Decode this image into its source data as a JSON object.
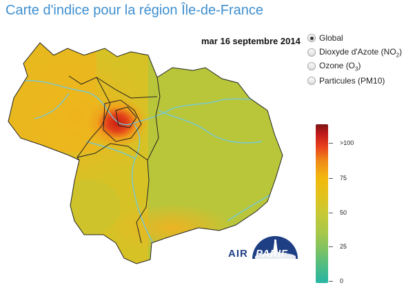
{
  "title": "Carte d'indice pour la région Île-de-France",
  "date": "mar 16 septembre 2014",
  "options": [
    {
      "label": "Global",
      "sub": "",
      "suffix": "",
      "checked": true
    },
    {
      "label": "Dioxyde d'Azote (NO",
      "sub": "2",
      "suffix": ")",
      "checked": false
    },
    {
      "label": "Ozone (O",
      "sub": "3",
      "suffix": ")",
      "checked": false
    },
    {
      "label": "Particules (PM10)",
      "sub": "",
      "suffix": "",
      "checked": false
    }
  ],
  "legend": {
    "labels": [
      ">100",
      "75",
      "50",
      "25",
      "0"
    ],
    "colors": {
      "top": "#7d1515",
      "high": "#e8401c",
      "mid": "#f2b90c",
      "low": "#a9c84a",
      "bottom": "#27b6a5"
    }
  },
  "logo": {
    "text_left": "AIR",
    "text_right": "PARIF",
    "color": "#1f3f84"
  },
  "colors": {
    "title": "#3f8fcf",
    "rivers": "#72c8d8",
    "borders": "#222222"
  }
}
